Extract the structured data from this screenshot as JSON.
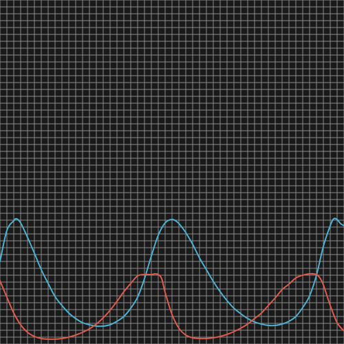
{
  "chart_data": {
    "type": "line",
    "title": "",
    "xlabel": "",
    "ylabel": "",
    "grid": true,
    "legend": "none",
    "xlim": [
      0,
      50
    ],
    "ylim": [
      0,
      50
    ],
    "series": [
      {
        "color": "#4bb3d1",
        "x": [
          0,
          1,
          2,
          2.4,
          3,
          4,
          5,
          6,
          7,
          8,
          9,
          10,
          11,
          12,
          13,
          14,
          15,
          16,
          17,
          18,
          19,
          20,
          21,
          22,
          23,
          24,
          25,
          25.8,
          26.5,
          27,
          28,
          29,
          30,
          31,
          32,
          33,
          34,
          35,
          36,
          37,
          38,
          39,
          40,
          41,
          42,
          43,
          44,
          45,
          46,
          47,
          48,
          48.5,
          49,
          49.5,
          50
        ],
        "y": [
          12,
          16.5,
          17.9,
          18.2,
          17.6,
          15.5,
          13.2,
          10.8,
          8.8,
          6.9,
          5.6,
          4.5,
          3.7,
          3.1,
          2.8,
          2.6,
          2.6,
          2.8,
          3.3,
          4,
          5.2,
          6.8,
          9.5,
          12.8,
          15.8,
          17.6,
          18.1,
          17.7,
          16.9,
          16.2,
          14.5,
          12.5,
          10.8,
          9.1,
          7.6,
          6.3,
          5.2,
          4.4,
          3.7,
          3.2,
          2.9,
          2.7,
          2.7,
          2.9,
          3.3,
          4,
          5.3,
          7,
          10,
          14.2,
          17.2,
          18.2,
          18.1,
          17.5,
          17.2
        ]
      },
      {
        "color": "#e05a4e",
        "x": [
          0,
          1,
          2,
          3,
          4,
          5,
          6,
          7,
          8,
          9,
          10,
          11,
          12,
          13,
          14,
          15,
          16,
          17,
          18,
          19,
          20,
          21,
          22,
          22.5,
          23,
          23.5,
          24,
          25,
          26,
          27,
          28,
          29,
          30,
          31,
          32,
          33,
          34,
          35,
          36,
          37,
          38,
          39,
          40,
          41,
          42,
          43,
          44,
          45,
          45.5,
          46,
          46.5,
          47,
          48,
          49,
          50
        ],
        "y": [
          9.2,
          6.8,
          4.5,
          2.8,
          1.7,
          1.1,
          0.8,
          0.7,
          0.7,
          0.8,
          1,
          1.3,
          1.7,
          2.2,
          2.9,
          3.8,
          4.9,
          6.2,
          7.6,
          8.8,
          9.9,
          10.1,
          10.1,
          10.2,
          10.1,
          9.5,
          7.5,
          4.3,
          2.3,
          1.3,
          0.9,
          0.8,
          0.8,
          0.9,
          1.1,
          1.4,
          1.8,
          2.3,
          2.9,
          3.7,
          4.5,
          5.6,
          6.7,
          7.9,
          8.7,
          9.6,
          10,
          10.2,
          10.2,
          10.1,
          9.6,
          8.6,
          5.6,
          3.1,
          1.9
        ]
      }
    ]
  }
}
